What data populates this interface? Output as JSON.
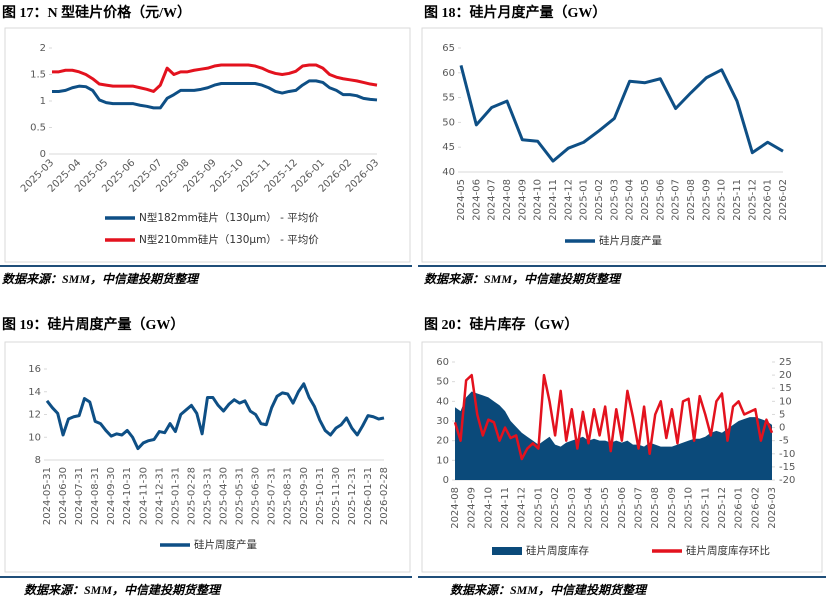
{
  "chart_data": [
    {
      "type": "line",
      "title": "图 17：N 型硅片价格（元/W）",
      "source": "数据来源：SMM，中信建投期货整理",
      "categories": [
        "2025-03",
        null,
        null,
        null,
        "2025-04",
        null,
        null,
        null,
        "2025-05",
        null,
        null,
        null,
        "2025-06",
        null,
        null,
        null,
        "2025-07",
        null,
        null,
        null,
        "2025-08",
        null,
        null,
        null,
        "2025-09",
        null,
        null,
        null,
        "2025-10",
        null,
        null,
        null,
        "2025-11",
        null,
        null,
        null,
        "2025-12",
        null,
        null,
        null,
        "2026-01",
        null,
        null,
        null,
        "2026-02",
        null,
        null,
        null,
        "2026-03"
      ],
      "series": [
        {
          "name": "N型182mm硅片（130μm） - 平均价",
          "color": "#0e4f85",
          "values": [
            1.18,
            1.18,
            1.2,
            1.25,
            1.28,
            1.27,
            1.2,
            1.02,
            0.97,
            0.95,
            0.95,
            0.95,
            0.95,
            0.92,
            0.9,
            0.87,
            0.87,
            1.05,
            1.12,
            1.2,
            1.2,
            1.2,
            1.22,
            1.25,
            1.3,
            1.33,
            1.33,
            1.33,
            1.33,
            1.33,
            1.33,
            1.3,
            1.25,
            1.18,
            1.15,
            1.18,
            1.2,
            1.3,
            1.38,
            1.38,
            1.35,
            1.25,
            1.2,
            1.12,
            1.12,
            1.1,
            1.05,
            1.03,
            1.02
          ]
        },
        {
          "name": "N型210mm硅片（130μm） - 平均价",
          "color": "#e3121e",
          "values": [
            1.55,
            1.55,
            1.58,
            1.58,
            1.55,
            1.5,
            1.42,
            1.32,
            1.3,
            1.28,
            1.28,
            1.28,
            1.28,
            1.25,
            1.22,
            1.18,
            1.3,
            1.62,
            1.5,
            1.55,
            1.55,
            1.58,
            1.6,
            1.62,
            1.66,
            1.68,
            1.68,
            1.68,
            1.68,
            1.68,
            1.66,
            1.62,
            1.56,
            1.52,
            1.5,
            1.52,
            1.56,
            1.66,
            1.68,
            1.68,
            1.62,
            1.5,
            1.45,
            1.42,
            1.4,
            1.38,
            1.35,
            1.32,
            1.3
          ]
        }
      ],
      "ylim": [
        0,
        2
      ],
      "yticks": [
        0,
        0.5,
        1,
        1.5,
        2
      ]
    },
    {
      "type": "line",
      "title": "图 18：硅片月度产量（GW）",
      "source": "数据来源：SMM，中信建投期货整理",
      "categories": [
        "2024-05",
        "2024-06",
        "2024-07",
        "2024-08",
        "2024-09",
        "2024-10",
        "2024-11",
        "2024-12",
        "2025-01",
        "2025-02",
        "2025-03",
        "2025-04",
        "2025-05",
        "2025-06",
        "2025-07",
        "2025-08",
        "2025-09",
        "2025-10",
        "2025-11",
        "2025-12",
        "2026-01",
        "2026-02"
      ],
      "series": [
        {
          "name": "硅片月度产量",
          "color": "#0e4f85",
          "values": [
            61.5,
            49.5,
            53,
            54.3,
            46.5,
            46.2,
            42.2,
            44.8,
            46,
            48.3,
            50.8,
            58.3,
            58,
            58.8,
            52.8,
            56,
            59,
            60.6,
            54.3,
            43.9,
            46,
            44.2
          ]
        }
      ],
      "ylim": [
        40,
        65
      ],
      "yticks": [
        40,
        45,
        50,
        55,
        60,
        65
      ]
    },
    {
      "type": "line",
      "title": "图 19：硅片周度产量（GW）",
      "source": "数据来源：SMM，中信建投期货整理",
      "categories": [
        "2024-05-31",
        null,
        null,
        "2024-06-30",
        null,
        null,
        "2024-07-31",
        null,
        null,
        "2024-08-31",
        null,
        null,
        "2024-09-30",
        null,
        null,
        "2024-10-31",
        null,
        null,
        "2024-11-30",
        null,
        null,
        "2024-12-31",
        null,
        null,
        "2025-01-31",
        null,
        null,
        "2025-02-28",
        null,
        null,
        "2025-03-31",
        null,
        null,
        "2025-04-30",
        null,
        null,
        "2025-05-31",
        null,
        null,
        "2025-06-30",
        null,
        null,
        "2025-07-31",
        null,
        null,
        "2025-08-31",
        null,
        null,
        "2025-09-30",
        null,
        null,
        "2025-10-31",
        null,
        null,
        "2025-11-30",
        null,
        null,
        "2025-12-31",
        null,
        null,
        "2026-01-31",
        null,
        null,
        "2026-02-28"
      ],
      "series": [
        {
          "name": "硅片周度产量",
          "color": "#0e4f85",
          "values": [
            13.2,
            12.6,
            12.1,
            10.2,
            11.6,
            11.8,
            11.9,
            13.4,
            13.1,
            11.4,
            11.2,
            10.6,
            10.1,
            10.3,
            10.2,
            10.6,
            10.0,
            9.0,
            9.5,
            9.7,
            9.8,
            10.5,
            10.4,
            11.2,
            10.5,
            12.0,
            12.4,
            12.8,
            12.1,
            10.3,
            13.5,
            13.5,
            12.8,
            12.3,
            12.9,
            13.3,
            13.0,
            13.2,
            12.3,
            12.0,
            11.2,
            11.1,
            12.6,
            13.6,
            13.9,
            13.8,
            13.0,
            14.0,
            14.7,
            13.5,
            12.7,
            11.5,
            10.6,
            10.2,
            10.8,
            11.1,
            11.7,
            10.8,
            10.2,
            11.0,
            11.9,
            11.8,
            11.6,
            11.7
          ]
        }
      ],
      "ylim": [
        8,
        16
      ],
      "yticks": [
        8,
        10,
        12,
        14,
        16
      ]
    },
    {
      "type": "combo",
      "title": "图 20：硅片库存（GW）",
      "source": "数据来源：SMM，中信建投期货整理",
      "categories": [
        "2024-08",
        null,
        null,
        "2024-09",
        null,
        null,
        "2024-10",
        null,
        null,
        "2024-11",
        null,
        null,
        "2024-12",
        null,
        null,
        "2025-01",
        null,
        null,
        "2025-02",
        null,
        null,
        "2025-03",
        null,
        null,
        "2025-04",
        null,
        null,
        "2025-05",
        null,
        null,
        "2025-06",
        null,
        null,
        "2025-07",
        null,
        null,
        "2025-08",
        null,
        null,
        "2025-09",
        null,
        null,
        "2025-10",
        null,
        null,
        "2025-11",
        null,
        null,
        "2025-12",
        null,
        null,
        "2026-01",
        null,
        null,
        "2026-02",
        null,
        null,
        "2026-03"
      ],
      "series": [
        {
          "name": "硅片周度库存",
          "type": "area",
          "color": "#0b4a7a",
          "values": [
            37,
            35,
            42,
            45,
            44,
            43,
            42,
            40,
            38,
            35,
            30,
            27,
            24,
            22,
            20,
            18,
            20,
            22,
            18,
            17,
            19,
            20,
            21,
            22,
            20,
            21,
            20,
            20,
            19,
            20,
            19,
            20,
            18,
            18,
            17,
            19,
            18,
            17,
            17,
            17,
            18,
            19,
            20,
            21,
            21,
            22,
            24,
            25,
            24,
            26,
            28,
            30,
            31,
            32,
            32,
            31,
            30,
            28
          ]
        },
        {
          "name": "硅片周度库存环比",
          "type": "line",
          "axis": "y2",
          "color": "#e3121e",
          "values": [
            2,
            -5,
            18,
            20,
            5,
            -3,
            3,
            2,
            -5,
            0,
            -4,
            -3,
            -12,
            -8,
            -6,
            -8,
            20,
            10,
            -3,
            14,
            -5,
            7,
            -8,
            6,
            -6,
            7,
            -3,
            8,
            -9,
            7,
            -5,
            14,
            4,
            -8,
            8,
            -10,
            5,
            10,
            -4,
            7,
            -6,
            10,
            11,
            -5,
            12,
            5,
            -3,
            10,
            13,
            -5,
            8,
            10,
            5,
            6,
            7,
            -5,
            3,
            -2
          ]
        }
      ],
      "ylim": [
        0,
        60
      ],
      "yticks": [
        0,
        10,
        20,
        30,
        40,
        50,
        60
      ],
      "y2lim": [
        -20,
        25
      ],
      "y2ticks": [
        -20,
        -15,
        -10,
        -5,
        0,
        5,
        10,
        15,
        20,
        25
      ]
    }
  ]
}
